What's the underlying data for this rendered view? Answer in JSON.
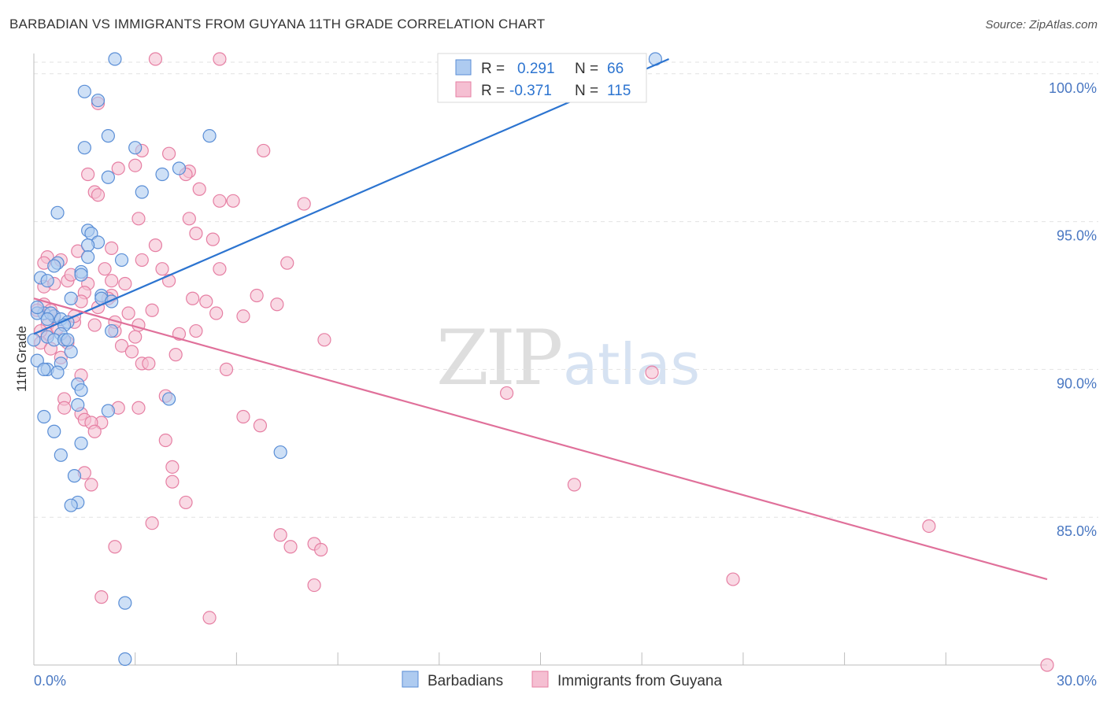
{
  "header": {
    "title": "BARBADIAN VS IMMIGRANTS FROM GUYANA 11TH GRADE CORRELATION CHART",
    "source": "Source: ZipAtlas.com"
  },
  "watermark": {
    "zip": "ZIP",
    "atlas": "atlas"
  },
  "colors": {
    "blue_fill": "#aecbf0",
    "blue_stroke": "#5a8ed6",
    "blue_line": "#2c74d0",
    "pink_fill": "#f5bfd2",
    "pink_stroke": "#e67fa3",
    "pink_line": "#e0709a",
    "grid": "#e2e2e2",
    "axis_text": "#4a78c2"
  },
  "stats_legend": {
    "rows": [
      {
        "series": "Barbadians",
        "r_label": "R =",
        "r_value": "0.291",
        "n_label": "N =",
        "n_value": "66"
      },
      {
        "series": "Immigrants from Guyana",
        "r_label": "R =",
        "r_value": "-0.371",
        "n_label": "N =",
        "n_value": "115"
      }
    ]
  },
  "chart_data": {
    "type": "scatter",
    "title": "BARBADIAN VS IMMIGRANTS FROM GUYANA 11TH GRADE CORRELATION CHART",
    "xlabel": "",
    "ylabel": "11th Grade",
    "xlim": [
      0,
      30
    ],
    "ylim": [
      80.0,
      100.5
    ],
    "x_tick_labels": [
      {
        "value": 0,
        "label": "0.0%"
      },
      {
        "value": 30,
        "label": "30.0%"
      }
    ],
    "y_ticks": [
      {
        "value": 100,
        "label": "100.0%"
      },
      {
        "value": 95,
        "label": "95.0%"
      },
      {
        "value": 90,
        "label": "90.0%"
      },
      {
        "value": 85,
        "label": "85.0%"
      }
    ],
    "x_minor_ticks": [
      3,
      6,
      9,
      12,
      15,
      18,
      21,
      24,
      27
    ],
    "grid": true,
    "legend_position": "bottom-center",
    "series": [
      {
        "name": "Barbadians",
        "color": "#5a8ed6",
        "r": 0.291,
        "n": 66,
        "trend": {
          "x": [
            0.0,
            18.8
          ],
          "y": [
            91.2,
            100.5
          ]
        },
        "points": [
          [
            2.4,
            100.5
          ],
          [
            18.4,
            100.5
          ],
          [
            1.5,
            99.4
          ],
          [
            1.9,
            99.1
          ],
          [
            2.2,
            97.9
          ],
          [
            5.2,
            97.9
          ],
          [
            1.5,
            97.5
          ],
          [
            3.0,
            97.5
          ],
          [
            4.3,
            96.8
          ],
          [
            3.8,
            96.6
          ],
          [
            2.2,
            96.5
          ],
          [
            3.2,
            96.0
          ],
          [
            0.7,
            95.3
          ],
          [
            1.6,
            94.7
          ],
          [
            1.7,
            94.6
          ],
          [
            1.9,
            94.3
          ],
          [
            1.6,
            94.2
          ],
          [
            1.6,
            93.8
          ],
          [
            2.6,
            93.7
          ],
          [
            0.7,
            93.6
          ],
          [
            0.6,
            93.5
          ],
          [
            1.4,
            93.3
          ],
          [
            1.4,
            93.2
          ],
          [
            0.2,
            93.1
          ],
          [
            2.0,
            92.5
          ],
          [
            1.1,
            92.4
          ],
          [
            2.0,
            92.4
          ],
          [
            2.3,
            92.3
          ],
          [
            0.3,
            91.9
          ],
          [
            0.1,
            91.9
          ],
          [
            0.6,
            91.8
          ],
          [
            0.5,
            91.9
          ],
          [
            0.4,
            91.7
          ],
          [
            0.8,
            91.7
          ],
          [
            1.0,
            91.6
          ],
          [
            0.9,
            91.5
          ],
          [
            2.3,
            91.3
          ],
          [
            0.8,
            91.2
          ],
          [
            0.4,
            91.1
          ],
          [
            0.6,
            91.0
          ],
          [
            0.9,
            91.0
          ],
          [
            1.1,
            90.6
          ],
          [
            0.1,
            90.3
          ],
          [
            0.8,
            90.2
          ],
          [
            0.4,
            90.0
          ],
          [
            0.3,
            90.0
          ],
          [
            0.7,
            89.9
          ],
          [
            1.3,
            89.5
          ],
          [
            1.4,
            89.3
          ],
          [
            4.0,
            89.0
          ],
          [
            1.3,
            88.8
          ],
          [
            2.2,
            88.6
          ],
          [
            0.3,
            88.4
          ],
          [
            0.6,
            87.9
          ],
          [
            1.4,
            87.5
          ],
          [
            7.3,
            87.2
          ],
          [
            0.8,
            87.1
          ],
          [
            1.2,
            86.4
          ],
          [
            1.3,
            85.5
          ],
          [
            1.1,
            85.4
          ],
          [
            2.7,
            82.1
          ],
          [
            2.7,
            80.2
          ],
          [
            0.0,
            91.0
          ],
          [
            0.4,
            93.0
          ],
          [
            1.0,
            91.0
          ],
          [
            0.1,
            92.1
          ]
        ]
      },
      {
        "name": "Immigrants from Guyana",
        "color": "#e67fa3",
        "r": -0.371,
        "n": 115,
        "trend": {
          "x": [
            0.0,
            30.0
          ],
          "y": [
            92.4,
            82.9
          ]
        },
        "points": [
          [
            3.6,
            100.5
          ],
          [
            5.5,
            100.5
          ],
          [
            1.9,
            99.0
          ],
          [
            6.8,
            97.4
          ],
          [
            3.2,
            97.4
          ],
          [
            4.0,
            97.3
          ],
          [
            3.0,
            96.9
          ],
          [
            4.6,
            96.7
          ],
          [
            2.5,
            96.8
          ],
          [
            4.5,
            96.6
          ],
          [
            1.6,
            96.6
          ],
          [
            4.9,
            96.1
          ],
          [
            1.8,
            96.0
          ],
          [
            1.9,
            95.9
          ],
          [
            5.9,
            95.7
          ],
          [
            5.5,
            95.7
          ],
          [
            8.0,
            95.6
          ],
          [
            4.6,
            95.1
          ],
          [
            3.1,
            95.1
          ],
          [
            4.8,
            94.6
          ],
          [
            5.3,
            94.4
          ],
          [
            2.3,
            94.1
          ],
          [
            3.6,
            94.2
          ],
          [
            1.3,
            94.0
          ],
          [
            0.4,
            93.8
          ],
          [
            0.8,
            93.7
          ],
          [
            3.2,
            93.7
          ],
          [
            7.5,
            93.6
          ],
          [
            5.5,
            93.4
          ],
          [
            3.8,
            93.4
          ],
          [
            4.0,
            93.0
          ],
          [
            2.3,
            93.0
          ],
          [
            1.0,
            93.0
          ],
          [
            1.6,
            92.9
          ],
          [
            2.7,
            92.9
          ],
          [
            0.3,
            92.8
          ],
          [
            1.5,
            92.6
          ],
          [
            2.3,
            92.5
          ],
          [
            6.6,
            92.5
          ],
          [
            4.7,
            92.4
          ],
          [
            2.2,
            92.4
          ],
          [
            1.4,
            92.3
          ],
          [
            0.3,
            92.2
          ],
          [
            5.1,
            92.3
          ],
          [
            7.2,
            92.2
          ],
          [
            0.5,
            92.0
          ],
          [
            3.5,
            92.0
          ],
          [
            2.8,
            91.9
          ],
          [
            5.4,
            91.9
          ],
          [
            6.2,
            91.8
          ],
          [
            0.6,
            91.8
          ],
          [
            1.2,
            91.6
          ],
          [
            1.8,
            91.5
          ],
          [
            3.1,
            91.5
          ],
          [
            0.4,
            91.5
          ],
          [
            2.4,
            91.3
          ],
          [
            4.8,
            91.3
          ],
          [
            4.3,
            91.2
          ],
          [
            0.4,
            91.2
          ],
          [
            3.0,
            91.1
          ],
          [
            8.6,
            91.0
          ],
          [
            1.0,
            90.9
          ],
          [
            2.6,
            90.8
          ],
          [
            3.2,
            90.2
          ],
          [
            3.4,
            90.2
          ],
          [
            5.7,
            90.0
          ],
          [
            18.3,
            89.9
          ],
          [
            1.4,
            89.8
          ],
          [
            3.9,
            89.1
          ],
          [
            0.9,
            89.0
          ],
          [
            14.0,
            89.2
          ],
          [
            0.9,
            88.7
          ],
          [
            3.1,
            88.7
          ],
          [
            2.5,
            88.7
          ],
          [
            1.4,
            88.5
          ],
          [
            6.2,
            88.4
          ],
          [
            2.0,
            88.2
          ],
          [
            1.5,
            88.3
          ],
          [
            1.7,
            88.2
          ],
          [
            6.7,
            88.1
          ],
          [
            1.8,
            87.9
          ],
          [
            3.9,
            87.6
          ],
          [
            4.1,
            86.7
          ],
          [
            1.5,
            86.5
          ],
          [
            4.1,
            86.2
          ],
          [
            1.7,
            86.1
          ],
          [
            16.0,
            86.1
          ],
          [
            4.5,
            85.5
          ],
          [
            3.5,
            84.8
          ],
          [
            26.5,
            84.7
          ],
          [
            7.3,
            84.4
          ],
          [
            8.3,
            84.1
          ],
          [
            2.4,
            84.0
          ],
          [
            7.6,
            84.0
          ],
          [
            8.5,
            83.9
          ],
          [
            20.7,
            82.9
          ],
          [
            8.3,
            82.7
          ],
          [
            2.0,
            82.3
          ],
          [
            5.2,
            81.6
          ],
          [
            30.0,
            80.0
          ],
          [
            0.1,
            92.0
          ],
          [
            0.2,
            91.3
          ],
          [
            0.2,
            90.9
          ],
          [
            0.5,
            90.7
          ],
          [
            0.7,
            91.4
          ],
          [
            0.8,
            90.4
          ],
          [
            1.1,
            93.2
          ],
          [
            2.1,
            93.4
          ],
          [
            2.4,
            91.6
          ],
          [
            1.2,
            91.8
          ],
          [
            0.6,
            92.9
          ],
          [
            1.9,
            92.1
          ],
          [
            4.2,
            90.5
          ],
          [
            2.9,
            90.6
          ],
          [
            0.3,
            93.6
          ]
        ]
      }
    ]
  },
  "bottom_legend": {
    "items": [
      {
        "label": "Barbadians"
      },
      {
        "label": "Immigrants from Guyana"
      }
    ]
  }
}
